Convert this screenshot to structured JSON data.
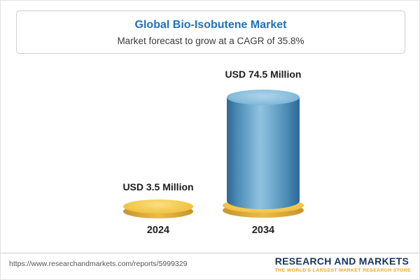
{
  "header": {
    "title": "Global Bio-Isobutene Market",
    "subtitle": "Market forecast to grow at a CAGR of 35.8%"
  },
  "chart_data": {
    "type": "bar",
    "categories": [
      "2024",
      "2034"
    ],
    "values": [
      3.5,
      74.5
    ],
    "value_labels": [
      "USD 3.5 Million",
      "USD 74.5 Million"
    ],
    "title": "Global Bio-Isobutene Market",
    "subtitle": "Market forecast to grow at a CAGR of 35.8%",
    "unit": "USD Million",
    "cagr": "35.8%",
    "xlabel": "",
    "ylabel": "",
    "legend": "none",
    "grid": false,
    "colors": {
      "bar_2024": "#f3c94e",
      "bar_2034": "#5b97bf",
      "bar_2034_base": "#f3c94e",
      "title_accent": "#1f72b8"
    }
  },
  "footer": {
    "url": "https://www.researchandmarkets.com/reports/5999329",
    "brand_name": "RESEARCH AND MARKETS",
    "brand_tagline": "THE WORLD'S LARGEST MARKET RESEARCH STORE"
  }
}
